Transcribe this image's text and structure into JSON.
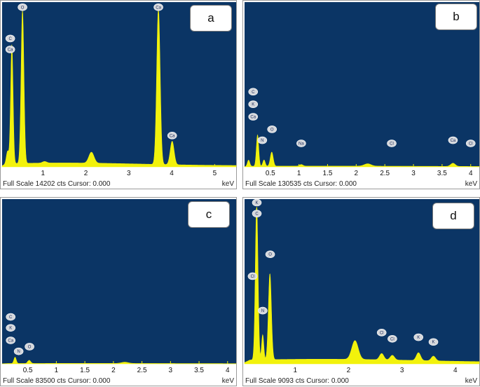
{
  "colors": {
    "plot_bg": "#0b3565",
    "spectrum": "#f2f20c",
    "peak_label_bg": "#d6d8dc",
    "tick_line": "#f2f20c"
  },
  "chart_data": [
    {
      "type": "area",
      "panel_letter": "a",
      "footer": "Full Scale 14202 cts Cursor: 0.000",
      "unit": "keV",
      "xlim": [
        0.05,
        5.5
      ],
      "ylim": [
        0,
        1
      ],
      "ticks": [
        1,
        2,
        3,
        4,
        5
      ],
      "tick_labels": [
        "1",
        "2",
        "3",
        "4",
        "5"
      ],
      "background": 0.025,
      "peaks": [
        {
          "x": 0.18,
          "y": 0.08,
          "w": 0.03
        },
        {
          "x": 0.277,
          "y": 0.76,
          "w": 0.028
        },
        {
          "x": 0.525,
          "y": 0.98,
          "w": 0.033
        },
        {
          "x": 1.04,
          "y": 0.01,
          "w": 0.05
        },
        {
          "x": 2.13,
          "y": 0.07,
          "w": 0.06
        },
        {
          "x": 3.69,
          "y": 1.0,
          "w": 0.04
        },
        {
          "x": 4.01,
          "y": 0.15,
          "w": 0.045
        }
      ],
      "labels": [
        {
          "text": "O",
          "x": 0.525,
          "y": 1.02
        },
        {
          "text": "C",
          "x": 0.24,
          "y": 0.82
        },
        {
          "text": "Ca",
          "x": 0.24,
          "y": 0.75
        },
        {
          "text": "Ca",
          "x": 3.69,
          "y": 1.02
        },
        {
          "text": "Ca",
          "x": 4.01,
          "y": 0.2
        }
      ]
    },
    {
      "type": "area",
      "panel_letter": "b",
      "footer": "Full Scale 130535 cts Cursor: 0.000",
      "unit": "keV",
      "xlim": [
        0.05,
        4.15
      ],
      "ylim": [
        0,
        1
      ],
      "ticks": [
        0.5,
        1,
        1.5,
        2,
        2.5,
        3,
        3.5,
        4
      ],
      "tick_labels": [
        "0.5",
        "1",
        "1.5",
        "2",
        "2.5",
        "3",
        "3.5",
        "4"
      ],
      "background": 0.005,
      "peaks": [
        {
          "x": 0.12,
          "y": 0.04,
          "w": 0.02
        },
        {
          "x": 0.277,
          "y": 0.2,
          "w": 0.02
        },
        {
          "x": 0.39,
          "y": 0.04,
          "w": 0.02
        },
        {
          "x": 0.525,
          "y": 0.09,
          "w": 0.025
        },
        {
          "x": 1.04,
          "y": 0.01,
          "w": 0.03
        },
        {
          "x": 2.2,
          "y": 0.015,
          "w": 0.06
        },
        {
          "x": 3.69,
          "y": 0.02,
          "w": 0.04
        }
      ],
      "labels": [
        {
          "text": "C",
          "x": 0.2,
          "y": 0.48
        },
        {
          "text": "K",
          "x": 0.2,
          "y": 0.4
        },
        {
          "text": "Ca",
          "x": 0.2,
          "y": 0.32
        },
        {
          "text": "N",
          "x": 0.36,
          "y": 0.17
        },
        {
          "text": "O",
          "x": 0.53,
          "y": 0.24
        },
        {
          "text": "Na",
          "x": 1.04,
          "y": 0.15
        },
        {
          "text": "Cl",
          "x": 2.62,
          "y": 0.15
        },
        {
          "text": "Ca",
          "x": 3.69,
          "y": 0.17
        },
        {
          "text": "Cl",
          "x": 4.0,
          "y": 0.15
        }
      ]
    },
    {
      "type": "area",
      "panel_letter": "c",
      "footer": "Full Scale 83500 cts Cursor: 0.000",
      "unit": "keV",
      "xlim": [
        0.05,
        4.15
      ],
      "ylim": [
        0,
        1
      ],
      "ticks": [
        0.5,
        1,
        1.5,
        2,
        2.5,
        3,
        3.5,
        4
      ],
      "tick_labels": [
        "0.5",
        "1",
        "1.5",
        "2",
        "2.5",
        "3",
        "3.5",
        "4"
      ],
      "background": 0.003,
      "peaks": [
        {
          "x": 0.277,
          "y": 0.04,
          "w": 0.02
        },
        {
          "x": 0.525,
          "y": 0.02,
          "w": 0.025
        },
        {
          "x": 2.2,
          "y": 0.008,
          "w": 0.06
        }
      ],
      "labels": [
        {
          "text": "C",
          "x": 0.2,
          "y": 0.3
        },
        {
          "text": "K",
          "x": 0.2,
          "y": 0.23
        },
        {
          "text": "Ca",
          "x": 0.2,
          "y": 0.15
        },
        {
          "text": "N",
          "x": 0.34,
          "y": 0.08
        },
        {
          "text": "O",
          "x": 0.53,
          "y": 0.11
        }
      ]
    },
    {
      "type": "area",
      "panel_letter": "d",
      "footer": "Full Scale 9093 cts Cursor: 0.000",
      "unit": "keV",
      "xlim": [
        0.05,
        4.45
      ],
      "ylim": [
        0,
        1
      ],
      "ticks": [
        1,
        2,
        3,
        4
      ],
      "tick_labels": [
        "1",
        "2",
        "3",
        "4"
      ],
      "background": 0.03,
      "peaks": [
        {
          "x": 0.277,
          "y": 1.0,
          "w": 0.025
        },
        {
          "x": 0.39,
          "y": 0.16,
          "w": 0.02
        },
        {
          "x": 0.525,
          "y": 0.55,
          "w": 0.028
        },
        {
          "x": 2.12,
          "y": 0.12,
          "w": 0.06
        },
        {
          "x": 2.62,
          "y": 0.04,
          "w": 0.04
        },
        {
          "x": 2.82,
          "y": 0.03,
          "w": 0.04
        },
        {
          "x": 3.31,
          "y": 0.05,
          "w": 0.04
        },
        {
          "x": 3.59,
          "y": 0.03,
          "w": 0.04
        }
      ],
      "labels": [
        {
          "text": "K",
          "x": 0.28,
          "y": 1.04
        },
        {
          "text": "C",
          "x": 0.28,
          "y": 0.96
        },
        {
          "text": "Cl",
          "x": 0.2,
          "y": 0.56
        },
        {
          "text": "O",
          "x": 0.53,
          "y": 0.7
        },
        {
          "text": "N",
          "x": 0.39,
          "y": 0.34
        },
        {
          "text": "Cl",
          "x": 2.62,
          "y": 0.2
        },
        {
          "text": "Cl",
          "x": 2.82,
          "y": 0.16
        },
        {
          "text": "K",
          "x": 3.31,
          "y": 0.17
        },
        {
          "text": "K",
          "x": 3.59,
          "y": 0.14
        }
      ]
    }
  ]
}
